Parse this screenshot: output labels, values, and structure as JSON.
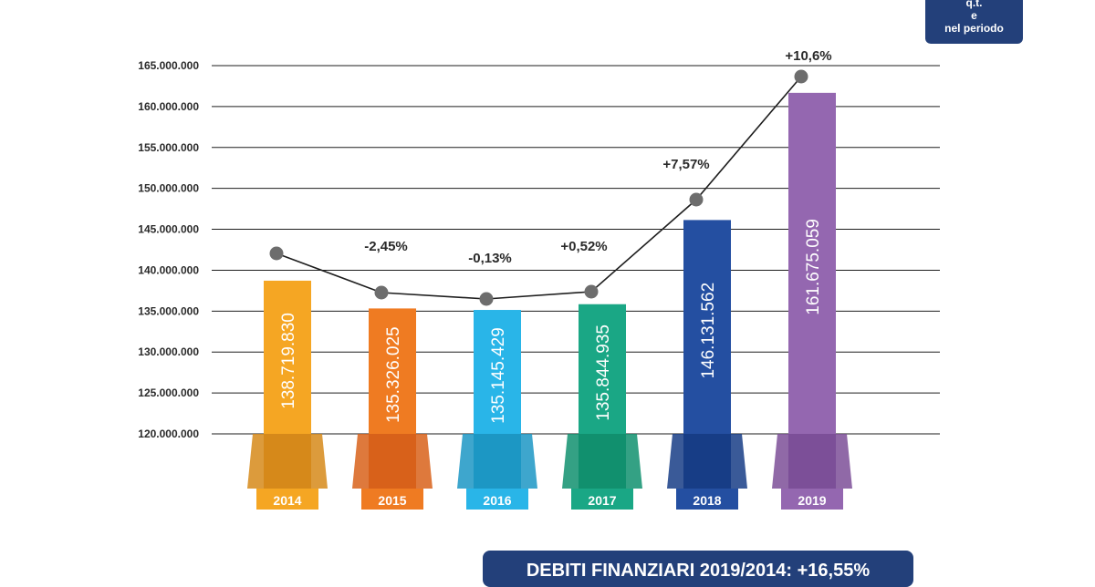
{
  "badge": {
    "lines": [
      "q.t.",
      "e",
      "nel periodo"
    ]
  },
  "banner": {
    "text": "DEBITI FINANZIARI 2019/2014: +16,55%"
  },
  "colors": {
    "bars": [
      "#f5a623",
      "#ef7b22",
      "#29b5e8",
      "#1aa785",
      "#244fa1",
      "#9467b0"
    ],
    "dark": [
      "#d6891a",
      "#d8611a",
      "#1c97c4",
      "#11906e",
      "#173d86",
      "#7c4f98"
    ],
    "line": "#1e1e1e",
    "marker": "#6d6d6d",
    "grid": "#1e1e1e",
    "badge": "#23407a"
  },
  "chart_data": {
    "type": "bar",
    "categories": [
      "2014",
      "2015",
      "2016",
      "2017",
      "2018",
      "2019"
    ],
    "values": [
      138719830,
      135326025,
      135145429,
      135844935,
      146131562,
      161675059
    ],
    "value_labels": [
      "138.719.830",
      "135.326.025",
      "135.145.429",
      "135.844.935",
      "146.131.562",
      "161.675.059"
    ],
    "change_labels": [
      "",
      "-2,45%",
      "-0,13%",
      "+0,52%",
      "+7,57%",
      "+10,6%"
    ],
    "yticks": [
      120000000,
      125000000,
      130000000,
      135000000,
      140000000,
      145000000,
      150000000,
      155000000,
      160000000,
      165000000
    ],
    "ytick_labels": [
      "120.000.000",
      "125.000.000",
      "130.000.000",
      "135.000.000",
      "140.000.000",
      "145.000.000",
      "150.000.000",
      "155.000.000",
      "160.000.000",
      "165.000.000"
    ],
    "ylim": [
      120000000,
      165000000
    ],
    "grid": true,
    "trend_line": true
  }
}
